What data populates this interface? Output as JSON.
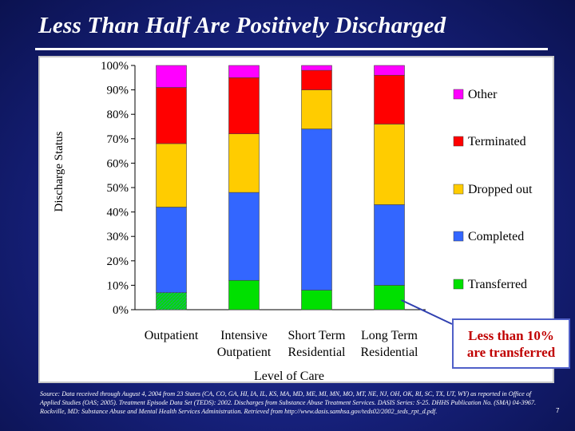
{
  "slide": {
    "title": "Less Than Half Are Positively Discharged",
    "callout_line1": "Less than 10%",
    "callout_line2": "are transferred",
    "source": "Source: Data received through August 4, 2004 from 23 States (CA, CO, GA, HI, IA, IL, KS, MA, MD, ME, MI, MN, MO, MT, NE, NJ, OH, OK, RI, SC, TX, UT, WY) as reported in Office of Applied Studies (OAS; 2005). Treatment Episode Data Set (TEDS): 2002. Discharges from Substance Abuse Treatment Services. DASIS Series: S-25. DHHS Publication No. (SMA) 04-3967. Rockville, MD: Substance Abuse and Mental Health Services Administration. Retrieved from http://www.dasis.samhsa.gov/teds02/2002_teds_rpt_d.pdf.",
    "page_number": "7"
  },
  "chart_data": {
    "type": "bar",
    "stacked": true,
    "percent": true,
    "xlabel": "Level of Care",
    "ylabel": "Discharge Status",
    "ylim": [
      0,
      100
    ],
    "yticks": [
      "0%",
      "10%",
      "20%",
      "30%",
      "40%",
      "50%",
      "60%",
      "70%",
      "80%",
      "90%",
      "100%"
    ],
    "categories": [
      [
        "Outpatient"
      ],
      [
        "Intensive",
        "Outpatient"
      ],
      [
        "Short Term",
        "Residential"
      ],
      [
        "Long Term",
        "Residential"
      ]
    ],
    "series": [
      {
        "name": "Transferred",
        "color": "#00e000",
        "values": [
          7,
          12,
          8,
          10
        ]
      },
      {
        "name": "Completed",
        "color": "#3366ff",
        "values": [
          35,
          36,
          66,
          33
        ]
      },
      {
        "name": "Dropped out",
        "color": "#ffcc00",
        "values": [
          26,
          24,
          16,
          33
        ]
      },
      {
        "name": "Terminated",
        "color": "#ff0000",
        "values": [
          23,
          23,
          8,
          20
        ]
      },
      {
        "name": "Other",
        "color": "#ff00ff",
        "values": [
          9,
          5,
          2,
          4
        ]
      }
    ],
    "legend_order": [
      "Other",
      "Terminated",
      "Dropped out",
      "Completed",
      "Transferred"
    ],
    "legend_position": "right",
    "grid": false
  }
}
